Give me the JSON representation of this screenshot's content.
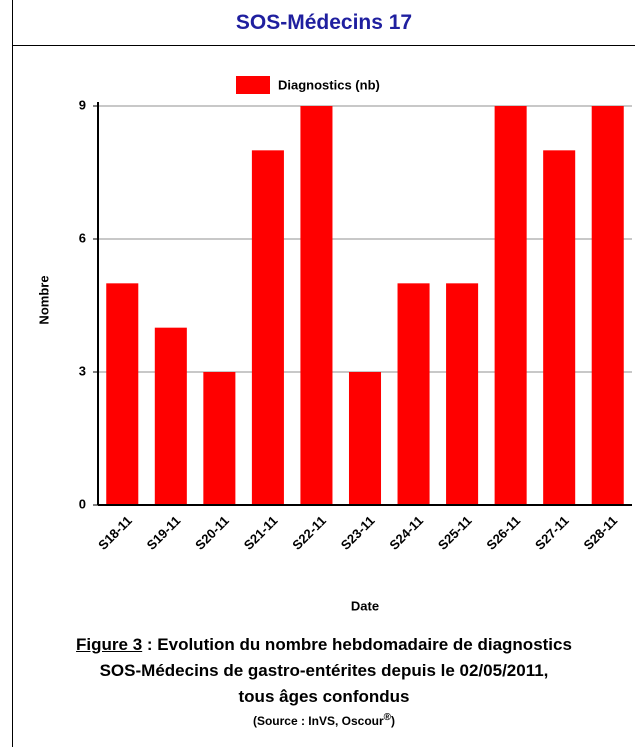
{
  "chart_data": {
    "type": "bar",
    "title": "SOS-Médecins 17",
    "legend": "Diagnostics (nb)",
    "ylabel": "Nombre",
    "xlabel": "Date",
    "categories": [
      "S18-11",
      "S19-11",
      "S20-11",
      "S21-11",
      "S22-11",
      "S23-11",
      "S24-11",
      "S25-11",
      "S26-11",
      "S27-11",
      "S28-11"
    ],
    "values": [
      5,
      4,
      3,
      8,
      9,
      3,
      5,
      5,
      9,
      8,
      9
    ],
    "color": "#ff0000",
    "ylim": [
      0,
      9
    ],
    "yticks": [
      0,
      3,
      6,
      9
    ],
    "grid": true
  },
  "caption": {
    "figure": "Figure 3",
    "line1": " : Evolution du nombre hebdomadaire de diagnostics",
    "line2": "SOS-Médecins de gastro-entérites depuis le 02/05/2011,",
    "line3": "tous âges confondus",
    "source": "(Source : InVS, Oscour",
    "source_sup": "®",
    "source_end": ")"
  }
}
